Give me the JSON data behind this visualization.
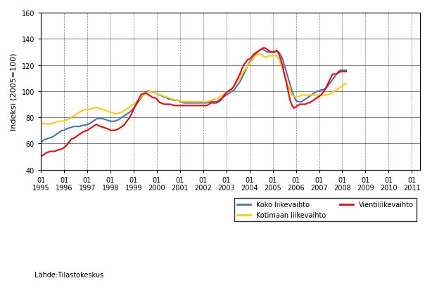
{
  "ylabel": "Indeksi (2005=100)",
  "source_text": "Lähde:Tilastokeskus",
  "legend": [
    "Koko liikevaihto",
    "Kotimaan liikevaihto",
    "Vientiliikevaihto"
  ],
  "colors": [
    "#4472C4",
    "#FFCC00",
    "#FF0000"
  ],
  "ylim": [
    40,
    160
  ],
  "yticks": [
    40,
    60,
    80,
    100,
    120,
    140,
    160
  ],
  "years": [
    1995,
    1996,
    1997,
    1998,
    1999,
    2000,
    2001,
    2002,
    2003,
    2004,
    2005,
    2006,
    2007,
    2008,
    2009,
    2010,
    2011
  ],
  "koko": [
    61,
    62,
    63,
    63.5,
    64,
    64.5,
    65,
    66,
    67,
    68,
    69,
    70,
    70,
    71,
    71.5,
    72,
    72.5,
    73,
    73,
    73,
    73,
    73.5,
    74,
    74,
    74.5,
    75,
    76,
    77,
    78,
    79,
    79,
    79,
    79,
    78.5,
    78,
    77.5,
    77,
    77,
    77,
    77.5,
    78,
    79,
    80,
    81,
    82,
    83,
    84,
    85,
    87,
    89,
    91,
    93,
    95,
    97,
    99,
    100,
    100,
    99.5,
    99,
    99,
    98,
    97,
    97,
    96,
    95.5,
    95,
    94,
    94,
    93.5,
    93,
    93,
    93,
    92,
    91.5,
    91,
    91,
    91,
    91,
    91,
    91,
    91,
    91,
    91,
    91,
    91,
    91,
    91,
    91.5,
    92,
    92,
    92,
    92,
    93,
    94,
    95,
    96,
    97,
    98,
    99,
    100,
    101,
    103,
    105,
    107,
    110,
    113,
    116,
    119,
    122,
    124,
    126,
    128,
    130,
    131,
    132,
    132,
    131,
    130,
    130,
    130,
    130,
    130,
    131,
    130,
    128,
    125,
    120,
    115,
    110,
    105,
    100,
    96,
    93,
    92,
    92,
    92,
    93,
    94,
    95,
    96,
    97,
    98,
    99,
    100,
    100,
    101,
    101,
    102,
    103,
    105,
    107,
    109,
    111,
    113,
    115,
    116,
    116,
    116,
    116
  ],
  "kotimaa": [
    75,
    75.5,
    75,
    75,
    75,
    75,
    75.5,
    76,
    76.5,
    77,
    77,
    77,
    77,
    78,
    78.5,
    79,
    80,
    81,
    82,
    83,
    84,
    85,
    85.5,
    86,
    86,
    86,
    86.5,
    87,
    87.5,
    87.5,
    87,
    86.5,
    86,
    85.5,
    85,
    84.5,
    84,
    83.5,
    83,
    83,
    83,
    83.5,
    84,
    85,
    86,
    87,
    88,
    89,
    90,
    91,
    92.5,
    94,
    95.5,
    97,
    98,
    99,
    99.5,
    99.5,
    99,
    99,
    98,
    97.5,
    97,
    96.5,
    96,
    95.5,
    95,
    94.5,
    94,
    93.5,
    93,
    93,
    92.5,
    92,
    92,
    92,
    92,
    92,
    92,
    92,
    92,
    92,
    92,
    92,
    92,
    92,
    92,
    92.5,
    93,
    93.5,
    94,
    94.5,
    95,
    96,
    97,
    98,
    99,
    100,
    101,
    102,
    104,
    106,
    108,
    110,
    113,
    115,
    117,
    119,
    121,
    123,
    125,
    127,
    128,
    128.5,
    128,
    127,
    126,
    126,
    127,
    127,
    127,
    127,
    127,
    125,
    122,
    118,
    113,
    108,
    104,
    100,
    97,
    96,
    96,
    96,
    96,
    97,
    97,
    97,
    97,
    97,
    97,
    97,
    97,
    97,
    97,
    97,
    97,
    97,
    97,
    97.5,
    98,
    99,
    100,
    101,
    102,
    103,
    104,
    105,
    106
  ],
  "vienti": [
    50,
    51,
    52,
    53,
    53.5,
    54,
    54,
    54,
    54.5,
    55,
    55.5,
    56,
    57,
    58,
    60,
    62,
    63.5,
    64,
    65,
    66,
    67,
    68,
    69,
    69.5,
    70,
    71,
    72,
    73,
    74,
    74.5,
    73.5,
    73,
    72.5,
    72,
    71.5,
    71,
    70,
    70,
    70,
    70.5,
    71,
    72,
    73,
    74,
    76,
    78,
    80,
    83,
    86,
    89,
    92,
    95,
    97.5,
    98,
    98.5,
    98,
    97,
    96,
    95,
    95,
    94,
    92,
    91,
    90.5,
    90,
    90,
    90,
    90,
    89.5,
    89,
    89,
    89,
    89,
    89,
    89,
    89,
    89,
    89,
    89,
    89,
    89,
    89,
    89,
    89,
    89,
    89,
    89,
    90,
    91,
    91,
    91,
    91,
    92,
    93,
    95,
    97,
    99,
    100,
    101,
    102,
    104,
    107,
    110,
    113,
    117,
    120,
    122,
    124,
    124.5,
    126,
    128,
    129,
    130,
    131,
    132,
    133,
    133,
    132,
    131,
    130,
    130,
    130,
    131,
    129,
    125,
    120,
    113,
    107,
    100,
    93,
    89,
    87,
    88,
    89,
    90,
    90,
    90,
    90,
    91,
    91,
    92,
    93,
    94,
    95,
    96,
    97,
    99,
    101,
    104,
    107,
    110,
    113,
    113,
    113,
    114,
    115,
    115,
    115,
    115
  ]
}
